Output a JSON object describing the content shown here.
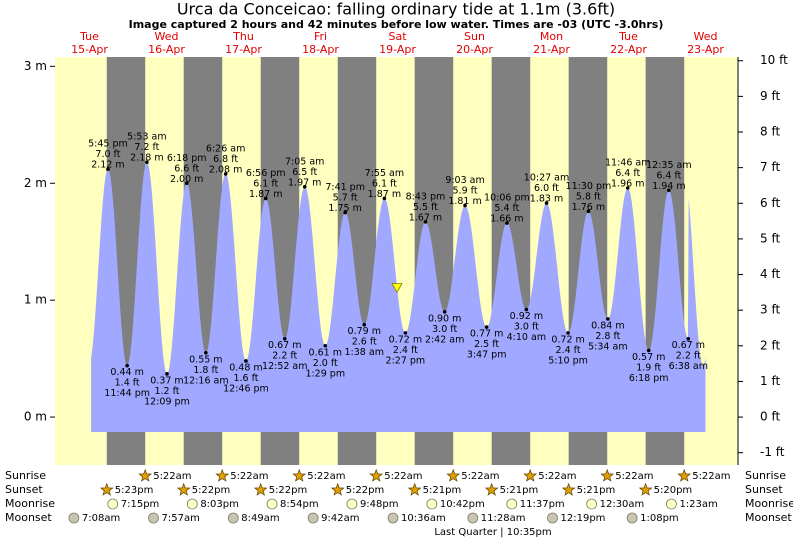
{
  "chart_data": {
    "type": "tide",
    "title": "Urca da Conceicao: falling  ordinary tide at 1.1m (3.6ft)",
    "subtitle": "Image captured 2 hours and 42 minutes before low water. Times are -03 (UTC -3.0hrs)",
    "current_level": 1.1,
    "ylim": [
      -0.41,
      3.08
    ],
    "yticks": [
      {
        "value": 0,
        "label": "0 m"
      },
      {
        "value": 1,
        "label": "1 m"
      },
      {
        "value": 2,
        "label": "2 m"
      },
      {
        "value": 3,
        "label": "3 m"
      }
    ],
    "y2lim": [
      -1.345,
      10.105
    ],
    "y2ticks": [
      {
        "value": -1,
        "label": "-1 ft"
      },
      {
        "value": 0,
        "label": "0 ft"
      },
      {
        "value": 1,
        "label": "1 ft"
      },
      {
        "value": 2,
        "label": "2 ft"
      },
      {
        "value": 3,
        "label": "3 ft"
      },
      {
        "value": 4,
        "label": "4 ft"
      },
      {
        "value": 5,
        "label": "5 ft"
      },
      {
        "value": 6,
        "label": "6 ft"
      },
      {
        "value": 7,
        "label": "7 ft"
      },
      {
        "value": 8,
        "label": "8 ft"
      },
      {
        "value": 9,
        "label": "9 ft"
      },
      {
        "value": 10,
        "label": "10 ft"
      }
    ],
    "row_labels": [
      "Sunrise",
      "Sunset",
      "Moonrise",
      "Moonset"
    ],
    "phase": "Last Quarter | 10:35pm",
    "days": [
      {
        "name": "Tue",
        "date": "15-Apr",
        "tides": [
          {
            "time": "5:45 pm",
            "ft": 7.0,
            "ft_label": "7.0 ft",
            "m": 2.12,
            "m_label": "2.12 m"
          },
          {
            "time": "11:44 pm",
            "ft": 1.4,
            "ft_label": "1.4 ft",
            "m": 0.44,
            "m_label": "0.44 m"
          }
        ],
        "sunset": "5:23pm",
        "moonrise": "7:15pm",
        "moonset": "7:08am"
      },
      {
        "name": "Wed",
        "date": "16-Apr",
        "tides": [
          {
            "time": "5:53 am",
            "ft": 7.2,
            "ft_label": "7.2 ft",
            "m": 2.18,
            "m_label": "2.18 m"
          },
          {
            "time": "12:09 pm",
            "ft": 1.2,
            "ft_label": "1.2 ft",
            "m": 0.37,
            "m_label": "0.37 m"
          },
          {
            "time": "6:18 pm",
            "ft": 6.6,
            "ft_label": "6.6 ft",
            "m": 2.0,
            "m_label": "2.00 m"
          }
        ],
        "sunrise": "5:22am",
        "sunset": "5:22pm",
        "moonrise": "8:03pm",
        "moonset": "7:57am"
      },
      {
        "name": "Thu",
        "date": "17-Apr",
        "tides": [
          {
            "time": "12:16 am",
            "ft": 1.8,
            "ft_label": "1.8 ft",
            "m": 0.55,
            "m_label": "0.55 m"
          },
          {
            "time": "6:26 am",
            "ft": 6.8,
            "ft_label": "6.8 ft",
            "m": 2.08,
            "m_label": "2.08 m"
          },
          {
            "time": "12:46 pm",
            "ft": 1.6,
            "ft_label": "1.6 ft",
            "m": 0.48,
            "m_label": "0.48 m"
          },
          {
            "time": "6:56 pm",
            "ft": 6.1,
            "ft_label": "6.1 ft",
            "m": 1.87,
            "m_label": "1.87 m"
          }
        ],
        "sunrise": "5:22am",
        "sunset": "5:22pm",
        "moonrise": "8:54pm",
        "moonset": "8:49am"
      },
      {
        "name": "Fri",
        "date": "18-Apr",
        "tides": [
          {
            "time": "12:52 am",
            "ft": 2.2,
            "ft_label": "2.2 ft",
            "m": 0.67,
            "m_label": "0.67 m"
          },
          {
            "time": "7:05 am",
            "ft": 6.5,
            "ft_label": "6.5 ft",
            "m": 1.97,
            "m_label": "1.97 m"
          },
          {
            "time": "1:29 pm",
            "ft": 2.0,
            "ft_label": "2.0 ft",
            "m": 0.61,
            "m_label": "0.61 m"
          },
          {
            "time": "7:41 pm",
            "ft": 5.7,
            "ft_label": "5.7 ft",
            "m": 1.75,
            "m_label": "1.75 m"
          }
        ],
        "sunrise": "5:22am",
        "sunset": "5:22pm",
        "moonrise": "9:48pm",
        "moonset": "9:42am"
      },
      {
        "name": "Sat",
        "date": "19-Apr",
        "tides": [
          {
            "time": "1:38 am",
            "ft": 2.6,
            "ft_label": "2.6 ft",
            "m": 0.79,
            "m_label": "0.79 m"
          },
          {
            "time": "7:55 am",
            "ft": 6.1,
            "ft_label": "6.1 ft",
            "m": 1.87,
            "m_label": "1.87 m"
          },
          {
            "time": "2:27 pm",
            "ft": 2.4,
            "ft_label": "2.4 ft",
            "m": 0.72,
            "m_label": "0.72 m"
          },
          {
            "time": "8:43 pm",
            "ft": 5.5,
            "ft_label": "5.5 ft",
            "m": 1.67,
            "m_label": "1.67 m"
          }
        ],
        "sunrise": "5:22am",
        "sunset": "5:21pm",
        "moonrise": "10:42pm",
        "moonset": "10:36am"
      },
      {
        "name": "Sun",
        "date": "20-Apr",
        "tides": [
          {
            "time": "2:42 am",
            "ft": 3.0,
            "ft_label": "3.0 ft",
            "m": 0.9,
            "m_label": "0.90 m"
          },
          {
            "time": "9:03 am",
            "ft": 5.9,
            "ft_label": "5.9 ft",
            "m": 1.81,
            "m_label": "1.81 m"
          },
          {
            "time": "3:47 pm",
            "ft": 2.5,
            "ft_label": "2.5 ft",
            "m": 0.77,
            "m_label": "0.77 m"
          },
          {
            "time": "10:06 pm",
            "ft": 5.4,
            "ft_label": "5.4 ft",
            "m": 1.66,
            "m_label": "1.66 m"
          }
        ],
        "sunrise": "5:22am",
        "sunset": "5:21pm",
        "moonrise": "11:37pm",
        "moonset": "11:28am"
      },
      {
        "name": "Mon",
        "date": "21-Apr",
        "tides": [
          {
            "time": "4:10 am",
            "ft": 3.0,
            "ft_label": "3.0 ft",
            "m": 0.92,
            "m_label": "0.92 m"
          },
          {
            "time": "10:27 am",
            "ft": 6.0,
            "ft_label": "6.0 ft",
            "m": 1.83,
            "m_label": "1.83 m"
          },
          {
            "time": "5:10 pm",
            "ft": 2.4,
            "ft_label": "2.4 ft",
            "m": 0.72,
            "m_label": "0.72 m"
          },
          {
            "time": "11:30 pm",
            "ft": 5.8,
            "ft_label": "5.8 ft",
            "m": 1.76,
            "m_label": "1.76 m"
          }
        ],
        "sunrise": "5:22am",
        "sunset": "5:21pm",
        "moonset": "12:19pm"
      },
      {
        "name": "Tue",
        "date": "22-Apr",
        "tides": [
          {
            "time": "5:34 am",
            "ft": 2.8,
            "ft_label": "2.8 ft",
            "m": 0.84,
            "m_label": "0.84 m"
          },
          {
            "time": "11:46 am",
            "ft": 6.4,
            "ft_label": "6.4 ft",
            "m": 1.96,
            "m_label": "1.96 m"
          },
          {
            "time": "6:18 pm",
            "ft": 1.9,
            "ft_label": "1.9 ft",
            "m": 0.57,
            "m_label": "0.57 m"
          }
        ],
        "sunrise": "5:22am",
        "sunset": "5:20pm",
        "moonrise": "12:30am",
        "moonset": "1:08pm"
      },
      {
        "name": "Wed",
        "date": "23-Apr",
        "tides": [
          {
            "time": "12:35 am",
            "ft": 6.4,
            "ft_label": "6.4 ft",
            "m": 1.94,
            "m_label": "1.94 m"
          },
          {
            "time": "6:38 am",
            "ft": 2.2,
            "ft_label": "2.2 ft",
            "m": 0.67,
            "m_label": "0.67 m"
          }
        ],
        "sunrise": "5:22am",
        "moonrise": "1:23am"
      }
    ]
  }
}
